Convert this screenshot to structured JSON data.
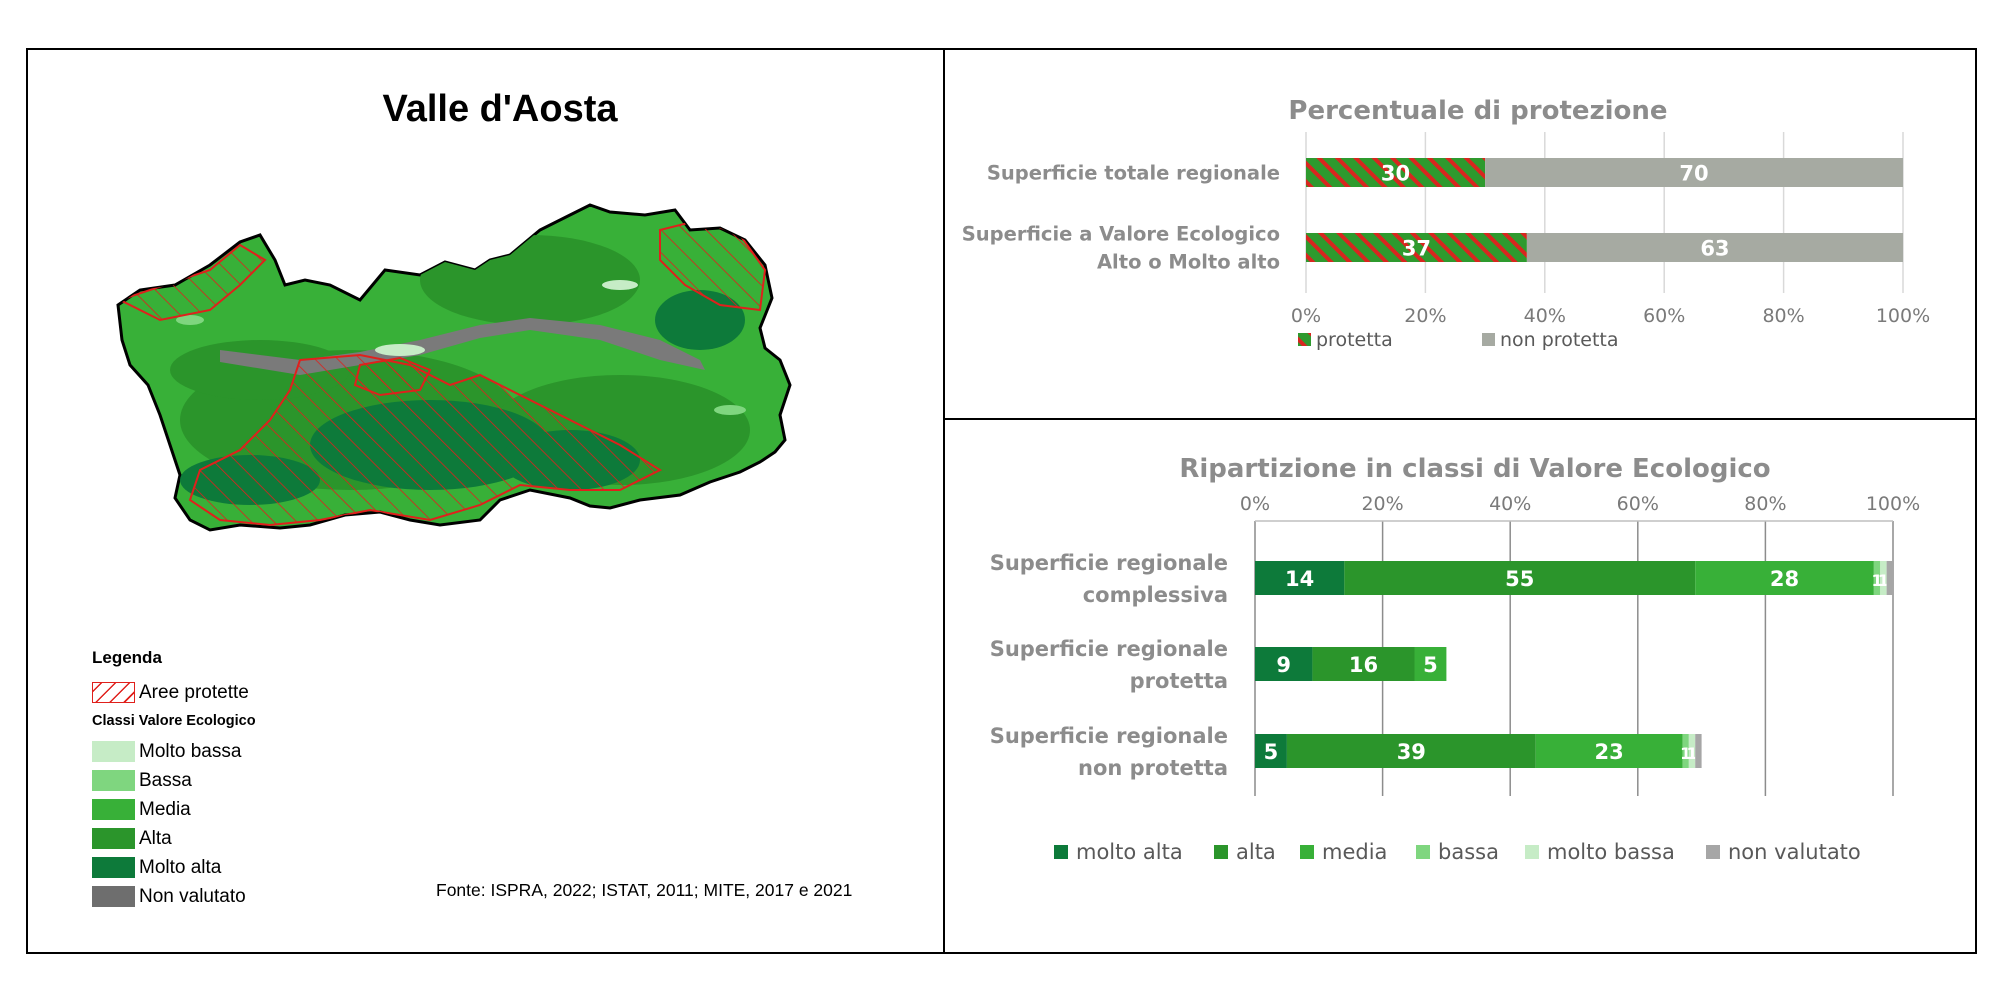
{
  "map": {
    "title": "Valle d'Aosta",
    "legend": {
      "title": "Legenda",
      "protected_label": "Aree protette",
      "classes_title": "Classi Valore Ecologico",
      "classes": [
        {
          "label": "Molto bassa",
          "color": "#c6ecc6"
        },
        {
          "label": "Bassa",
          "color": "#7fd67f"
        },
        {
          "label": "Media",
          "color": "#38b038"
        },
        {
          "label": "Alta",
          "color": "#2b952b"
        },
        {
          "label": "Molto alta",
          "color": "#0d7a3a"
        },
        {
          "label": "Non valutato",
          "color": "#6e6e6e"
        }
      ]
    },
    "source": "Fonte: ISPRA, 2022; ISTAT, 2011; MITE, 2017 e 2021",
    "protected_color": "#e0201c"
  },
  "chart_data": [
    {
      "type": "bar",
      "orientation": "horizontal",
      "stacked": "percent",
      "title": "Percentuale di protezione",
      "categories": [
        "Superficie totale regionale",
        "Superficie a Valore Ecologico Alto o Molto alto"
      ],
      "category_lines": [
        [
          "Superficie totale regionale"
        ],
        [
          "Superficie a Valore Ecologico",
          "Alto o Molto alto"
        ]
      ],
      "series": [
        {
          "name": "protetta",
          "values": [
            30,
            37
          ],
          "color": "#2e9a2e",
          "pattern": "red-hatch"
        },
        {
          "name": "non protetta",
          "values": [
            70,
            63
          ],
          "color": "#a6aaa2"
        }
      ],
      "xlim": [
        0,
        100
      ],
      "xticks": [
        "0%",
        "20%",
        "40%",
        "60%",
        "80%",
        "100%"
      ],
      "grid": true,
      "legend_position": "bottom"
    },
    {
      "type": "bar",
      "orientation": "horizontal",
      "stacked": true,
      "title": "Ripartizione in classi di Valore Ecologico",
      "categories": [
        "Superficie regionale complessiva",
        "Superficie regionale protetta",
        "Superficie regionale non protetta"
      ],
      "category_lines": [
        [
          "Superficie regionale",
          "complessiva"
        ],
        [
          "Superficie regionale",
          "protetta"
        ],
        [
          "Superficie regionale",
          "non protetta"
        ]
      ],
      "series": [
        {
          "name": "molto alta",
          "values": [
            14,
            9,
            5
          ],
          "labels": [
            "14",
            "9",
            "5"
          ],
          "color": "#0d7a3a"
        },
        {
          "name": "alta",
          "values": [
            55,
            16,
            39
          ],
          "labels": [
            "55",
            "16",
            "39"
          ],
          "color": "#2b952b"
        },
        {
          "name": "media",
          "values": [
            28,
            5,
            23
          ],
          "labels": [
            "28",
            "5",
            "23"
          ],
          "color": "#38b038"
        },
        {
          "name": "bassa",
          "values": [
            1,
            0,
            1
          ],
          "labels": [
            "1",
            "",
            "1"
          ],
          "color": "#7fd67f"
        },
        {
          "name": "molto bassa",
          "values": [
            1,
            0,
            1
          ],
          "labels": [
            "1",
            "",
            "1"
          ],
          "color": "#c6ecc6"
        },
        {
          "name": "non valutato",
          "values": [
            1,
            0,
            1
          ],
          "labels": [
            "",
            "",
            ""
          ],
          "color": "#a6a6a6"
        }
      ],
      "xlim": [
        0,
        100
      ],
      "xticks": [
        "0%",
        "20%",
        "40%",
        "60%",
        "80%",
        "100%"
      ],
      "xaxis_position": "top",
      "grid": true,
      "legend_position": "bottom"
    }
  ]
}
